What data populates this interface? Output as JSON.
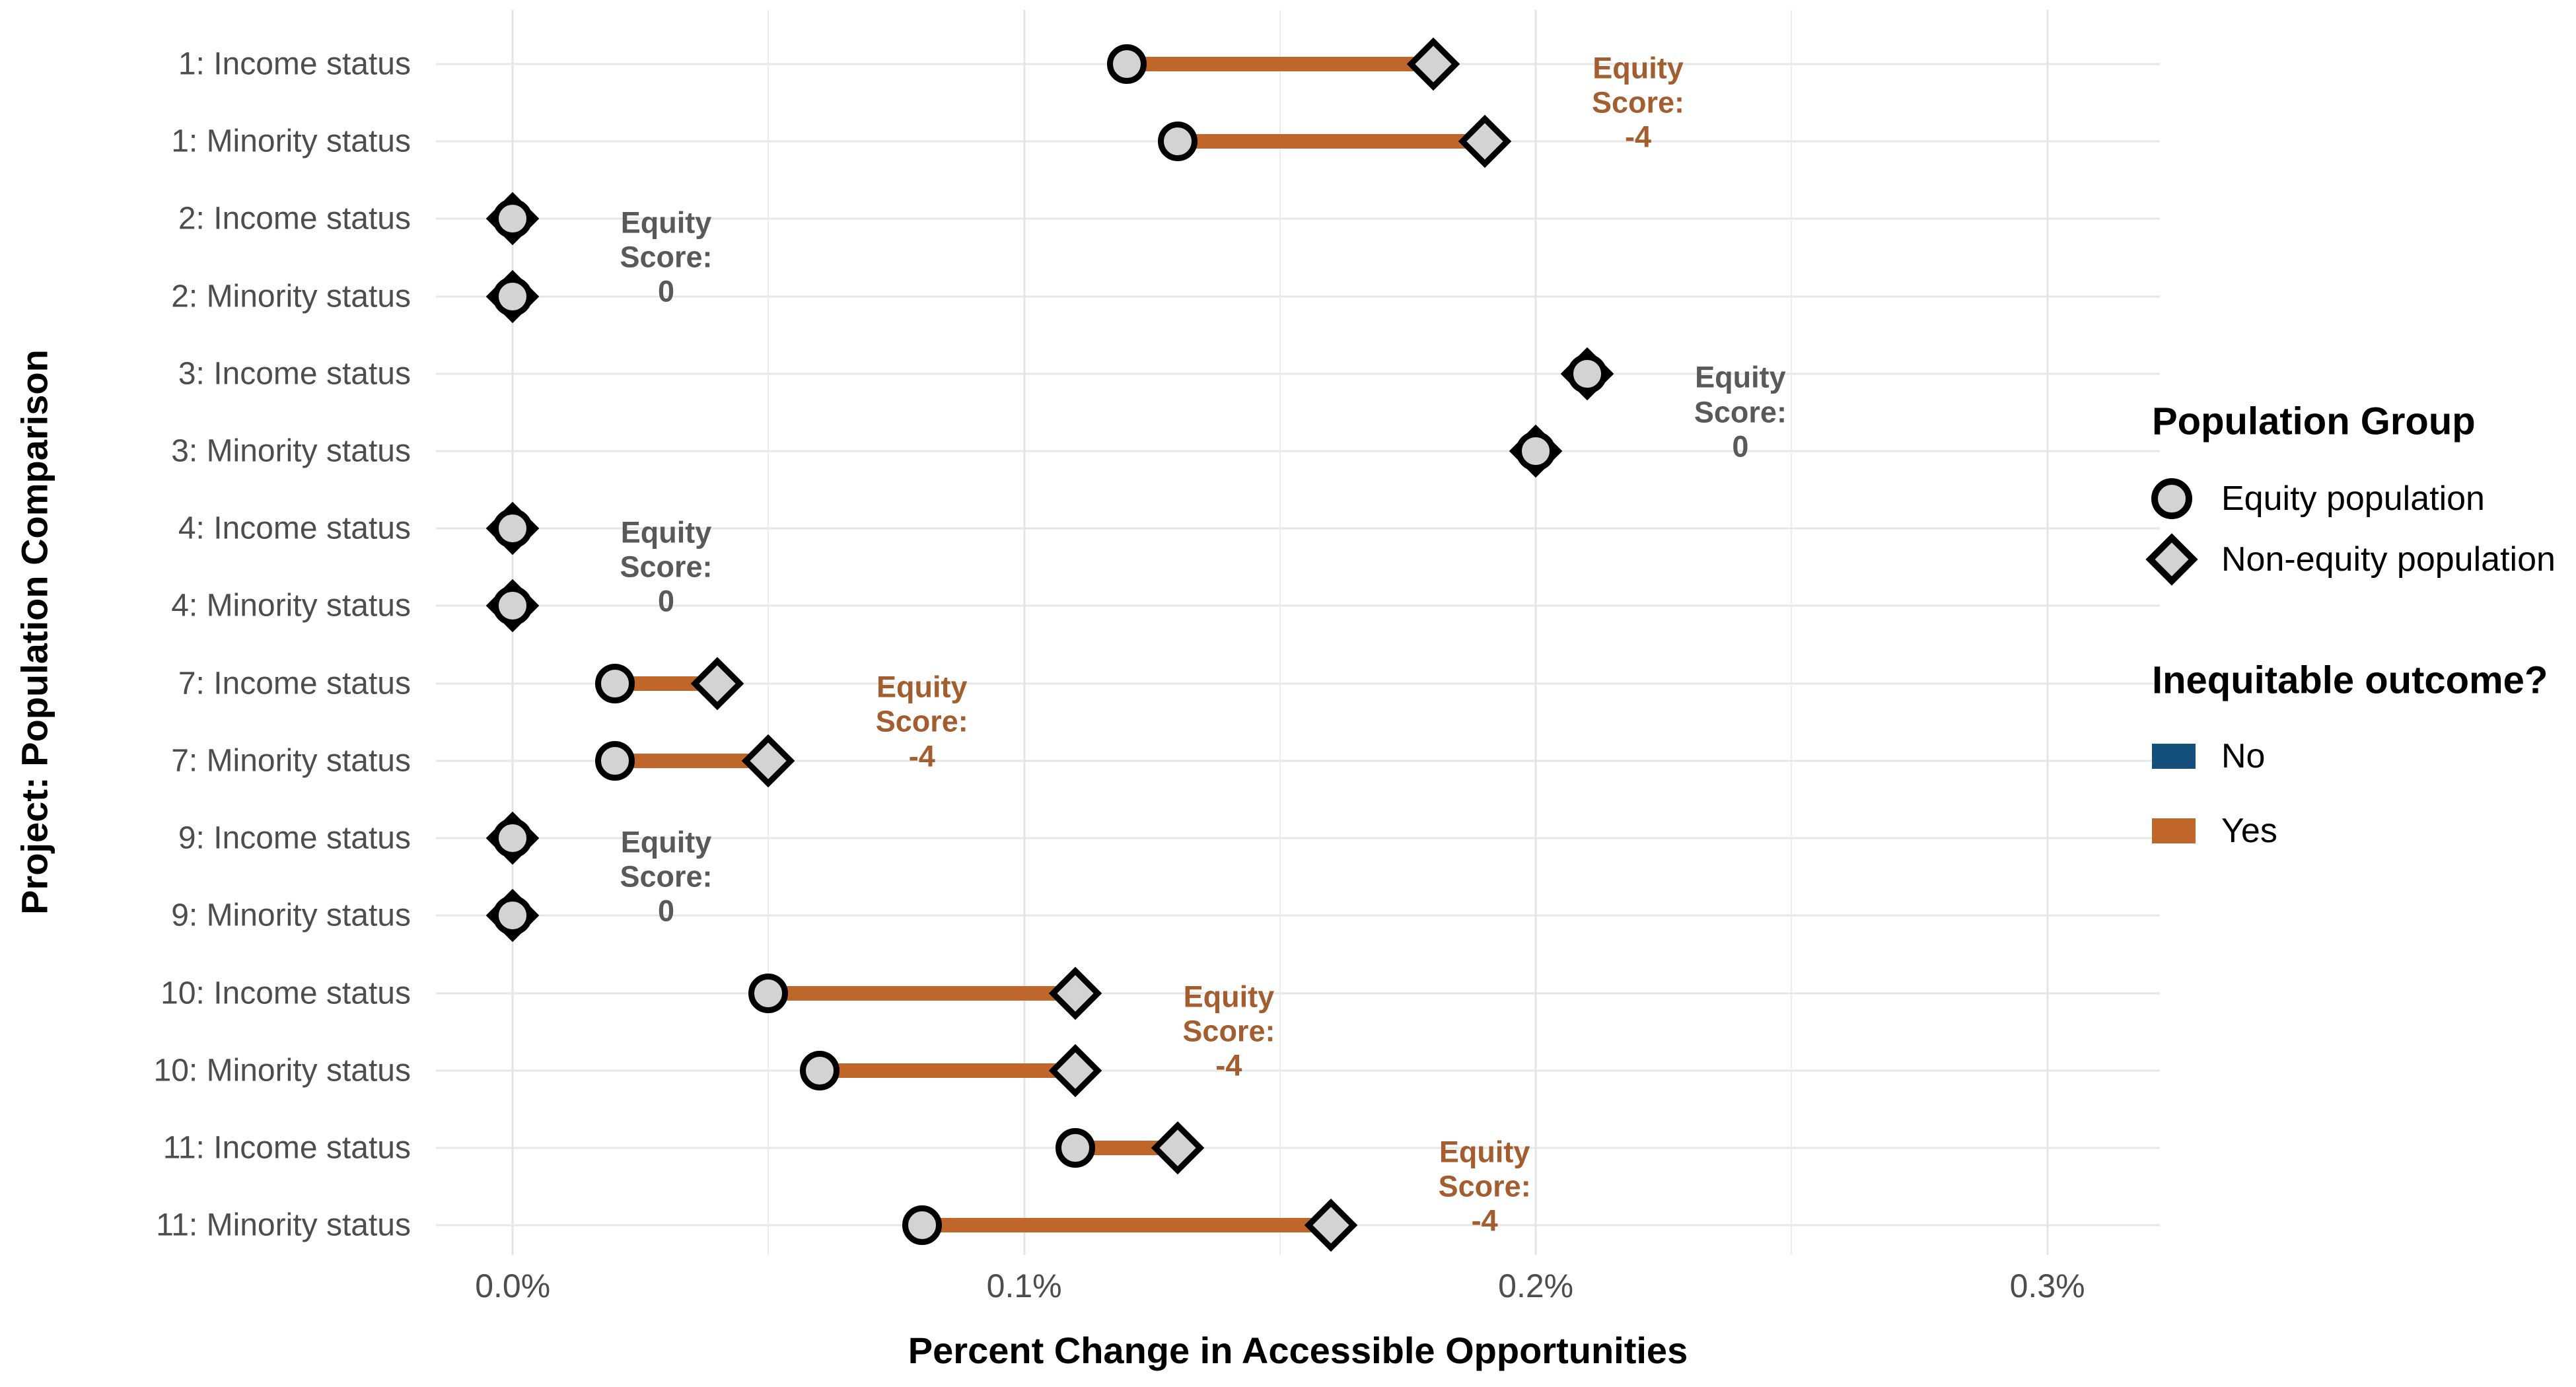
{
  "colors": {
    "inequitable_yes": "#C0662A",
    "inequitable_no": "#15507C",
    "marker_fill": "#D3D3D3",
    "marker_stroke": "#000000",
    "annotation_yes": "#A35D2E",
    "annotation_no": "#595959",
    "axis_text": "#4D4D4D",
    "grid_major": "#E4E4E4",
    "grid_minor": "#ECECEC"
  },
  "chart_data": {
    "type": "dumbbell",
    "xlabel": "Percent Change in Accessible Opportunities",
    "ylabel": "Project: Population Comparison",
    "unit": "%",
    "x_range": [
      -0.015,
      0.322
    ],
    "x_ticks": [
      {
        "value": 0.0,
        "label": "0.0%"
      },
      {
        "value": 0.1,
        "label": "0.1%"
      },
      {
        "value": 0.2,
        "label": "0.2%"
      },
      {
        "value": 0.3,
        "label": "0.3%"
      }
    ],
    "x_minor_ticks": [
      0.05,
      0.15,
      0.25
    ],
    "grid": true,
    "categories": [
      "1: Income status",
      "1: Minority status",
      "2: Income status",
      "2: Minority status",
      "3: Income status",
      "3: Minority status",
      "4: Income status",
      "4: Minority status",
      "7: Income status",
      "7: Minority status",
      "9: Income status",
      "9: Minority status",
      "10: Income status",
      "10: Minority status",
      "11: Income status",
      "11: Minority status"
    ],
    "series": [
      {
        "name": "Equity population",
        "marker": "circle",
        "values": [
          0.12,
          0.13,
          0.0,
          0.0,
          0.21,
          0.2,
          0.0,
          0.0,
          0.02,
          0.02,
          0.0,
          0.0,
          0.05,
          0.06,
          0.11,
          0.08
        ]
      },
      {
        "name": "Non-equity population",
        "marker": "diamond",
        "values": [
          0.18,
          0.19,
          0.0,
          0.0,
          0.21,
          0.2,
          0.0,
          0.0,
          0.04,
          0.05,
          0.0,
          0.0,
          0.11,
          0.11,
          0.13,
          0.16
        ]
      }
    ],
    "inequitable_outcome": [
      "Yes",
      "Yes",
      "No",
      "No",
      "No",
      "No",
      "No",
      "No",
      "Yes",
      "Yes",
      "No",
      "No",
      "Yes",
      "Yes",
      "Yes",
      "Yes"
    ],
    "annotations": [
      {
        "project": "1",
        "lines": [
          "Equity",
          "Score:",
          "-4"
        ],
        "score": -4,
        "x": 0.22,
        "between_rows": [
          0,
          1
        ],
        "outcome": "Yes"
      },
      {
        "project": "2",
        "lines": [
          "Equity",
          "Score:",
          "0"
        ],
        "score": 0,
        "x": 0.03,
        "between_rows": [
          2,
          3
        ],
        "outcome": "No"
      },
      {
        "project": "3",
        "lines": [
          "Equity",
          "Score:",
          "0"
        ],
        "score": 0,
        "x": 0.24,
        "between_rows": [
          4,
          5
        ],
        "outcome": "No"
      },
      {
        "project": "4",
        "lines": [
          "Equity",
          "Score:",
          "0"
        ],
        "score": 0,
        "x": 0.03,
        "between_rows": [
          6,
          7
        ],
        "outcome": "No"
      },
      {
        "project": "7",
        "lines": [
          "Equity",
          "Score:",
          "-4"
        ],
        "score": -4,
        "x": 0.08,
        "between_rows": [
          8,
          9
        ],
        "outcome": "Yes"
      },
      {
        "project": "9",
        "lines": [
          "Equity",
          "Score:",
          "0"
        ],
        "score": 0,
        "x": 0.03,
        "between_rows": [
          10,
          11
        ],
        "outcome": "No"
      },
      {
        "project": "10",
        "lines": [
          "Equity",
          "Score:",
          "-4"
        ],
        "score": -4,
        "x": 0.14,
        "between_rows": [
          12,
          13
        ],
        "outcome": "Yes"
      },
      {
        "project": "11",
        "lines": [
          "Equity",
          "Score:",
          "-4"
        ],
        "score": -4,
        "x": 0.19,
        "between_rows": [
          14,
          15
        ],
        "outcome": "Yes"
      }
    ],
    "legend": {
      "position": "right",
      "population_group": {
        "title": "Population Group",
        "items": [
          {
            "label": "Equity population",
            "marker": "circle"
          },
          {
            "label": "Non-equity population",
            "marker": "diamond"
          }
        ]
      },
      "inequitable_outcome": {
        "title": "Inequitable outcome?",
        "items": [
          {
            "label": "No",
            "color": "#15507C"
          },
          {
            "label": "Yes",
            "color": "#C0662A"
          }
        ]
      }
    }
  }
}
